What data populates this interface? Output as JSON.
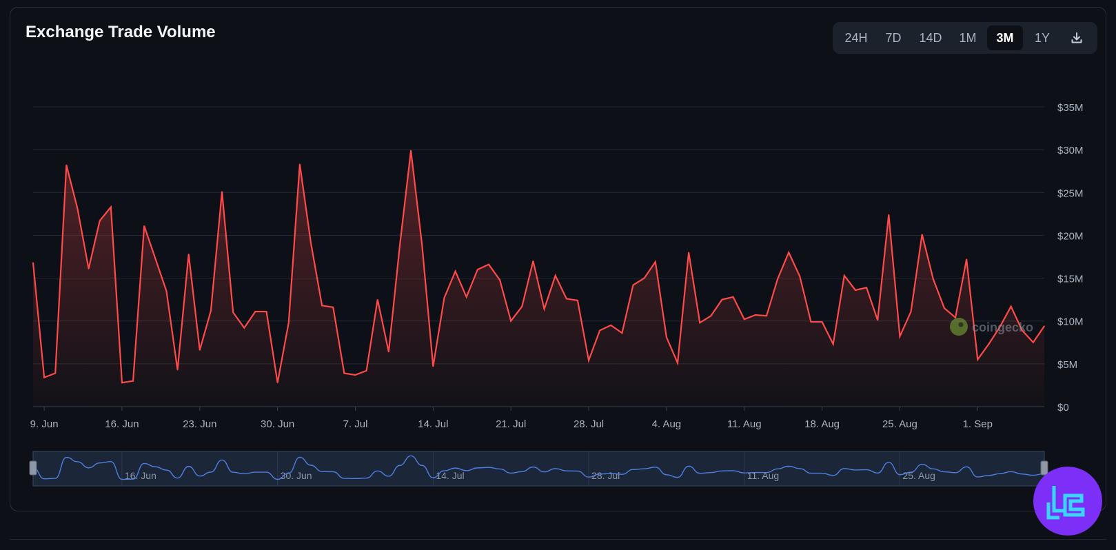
{
  "chart_title": "Exchange Trade Volume",
  "range_buttons": [
    "24H",
    "7D",
    "14D",
    "1M",
    "3M",
    "1Y"
  ],
  "active_range": "3M",
  "download_icon": "download-icon",
  "watermark": "coingecko",
  "brand_icon": "brand-logo-icon",
  "colors": {
    "line": "#ff4a4a",
    "area_top": "#ff4a4a",
    "grid": "#222a33",
    "navigator_line": "#4f7fe0",
    "navigator_fill": "#1b2638",
    "background": "#0d1117",
    "badge": "#7b2ff7"
  },
  "chart_data": {
    "type": "area",
    "title": "Exchange Trade Volume",
    "xlabel": "",
    "ylabel": "",
    "x_start": "2025-06-08",
    "x_end": "2025-09-07",
    "ylim": [
      0,
      35000000
    ],
    "grid": true,
    "y_ticks": [
      {
        "value": 0,
        "label": "$0"
      },
      {
        "value": 5000000,
        "label": "$5M"
      },
      {
        "value": 10000000,
        "label": "$10M"
      },
      {
        "value": 15000000,
        "label": "$15M"
      },
      {
        "value": 20000000,
        "label": "$20M"
      },
      {
        "value": 25000000,
        "label": "$25M"
      },
      {
        "value": 30000000,
        "label": "$30M"
      },
      {
        "value": 35000000,
        "label": "$35M"
      }
    ],
    "x_ticks": [
      {
        "date": "2025-06-09",
        "label": "9. Jun"
      },
      {
        "date": "2025-06-16",
        "label": "16. Jun"
      },
      {
        "date": "2025-06-23",
        "label": "23. Jun"
      },
      {
        "date": "2025-06-30",
        "label": "30. Jun"
      },
      {
        "date": "2025-07-07",
        "label": "7. Jul"
      },
      {
        "date": "2025-07-14",
        "label": "14. Jul"
      },
      {
        "date": "2025-07-21",
        "label": "21. Jul"
      },
      {
        "date": "2025-07-28",
        "label": "28. Jul"
      },
      {
        "date": "2025-08-04",
        "label": "4. Aug"
      },
      {
        "date": "2025-08-11",
        "label": "11. Aug"
      },
      {
        "date": "2025-08-18",
        "label": "18. Aug"
      },
      {
        "date": "2025-08-25",
        "label": "25. Aug"
      },
      {
        "date": "2025-09-01",
        "label": "1. Sep"
      }
    ],
    "navigator_ticks": [
      {
        "date": "2025-06-16",
        "label": "16. Jun"
      },
      {
        "date": "2025-06-30",
        "label": "30. Jun"
      },
      {
        "date": "2025-07-14",
        "label": "14. Jul"
      },
      {
        "date": "2025-07-28",
        "label": "28. Jul"
      },
      {
        "date": "2025-08-11",
        "label": "11. Aug"
      },
      {
        "date": "2025-08-25",
        "label": "25. Aug"
      }
    ],
    "series": [
      {
        "dates": [
          "2025-06-08",
          "2025-06-09",
          "2025-06-10",
          "2025-06-11",
          "2025-06-12",
          "2025-06-13",
          "2025-06-14",
          "2025-06-15",
          "2025-06-16",
          "2025-06-17",
          "2025-06-18",
          "2025-06-19",
          "2025-06-20",
          "2025-06-21",
          "2025-06-22",
          "2025-06-23",
          "2025-06-24",
          "2025-06-25",
          "2025-06-26",
          "2025-06-27",
          "2025-06-28",
          "2025-06-29",
          "2025-06-30",
          "2025-07-01",
          "2025-07-02",
          "2025-07-03",
          "2025-07-04",
          "2025-07-05",
          "2025-07-06",
          "2025-07-07",
          "2025-07-08",
          "2025-07-09",
          "2025-07-10",
          "2025-07-11",
          "2025-07-12",
          "2025-07-13",
          "2025-07-14",
          "2025-07-15",
          "2025-07-16",
          "2025-07-17",
          "2025-07-18",
          "2025-07-19",
          "2025-07-20",
          "2025-07-21",
          "2025-07-22",
          "2025-07-23",
          "2025-07-24",
          "2025-07-25",
          "2025-07-26",
          "2025-07-27",
          "2025-07-28",
          "2025-07-29",
          "2025-07-30",
          "2025-07-31",
          "2025-08-01",
          "2025-08-02",
          "2025-08-03",
          "2025-08-04",
          "2025-08-05",
          "2025-08-06",
          "2025-08-07",
          "2025-08-08",
          "2025-08-09",
          "2025-08-10",
          "2025-08-11",
          "2025-08-12",
          "2025-08-13",
          "2025-08-14",
          "2025-08-15",
          "2025-08-16",
          "2025-08-17",
          "2025-08-18",
          "2025-08-19",
          "2025-08-20",
          "2025-08-21",
          "2025-08-22",
          "2025-08-23",
          "2025-08-24",
          "2025-08-25",
          "2025-08-26",
          "2025-08-27",
          "2025-08-28",
          "2025-08-29",
          "2025-08-30",
          "2025-08-31",
          "2025-09-01",
          "2025-09-02",
          "2025-09-03",
          "2025-09-04",
          "2025-09-05",
          "2025-09-06",
          "2025-09-07"
        ],
        "values": [
          16800000,
          3400000,
          3900000,
          28200000,
          23100000,
          16100000,
          21700000,
          23300000,
          2800000,
          3000000,
          21100000,
          17300000,
          13500000,
          4300000,
          17800000,
          6600000,
          11200000,
          25100000,
          11000000,
          9200000,
          11100000,
          11100000,
          2800000,
          9800000,
          28300000,
          19100000,
          11800000,
          11600000,
          3900000,
          3700000,
          4200000,
          12500000,
          6400000,
          18800000,
          29900000,
          18900000,
          4700000,
          12700000,
          15800000,
          12800000,
          16000000,
          16600000,
          14800000,
          10000000,
          11700000,
          17000000,
          11400000,
          15300000,
          12600000,
          12400000,
          5400000,
          8900000,
          9500000,
          8600000,
          14200000,
          15000000,
          16900000,
          8100000,
          5100000,
          18000000,
          9800000,
          10600000,
          12500000,
          12800000,
          10200000,
          10700000,
          10600000,
          14900000,
          18000000,
          15200000,
          9900000,
          9900000,
          7300000,
          15300000,
          13600000,
          13900000,
          10100000,
          22400000,
          8200000,
          11100000,
          20100000,
          14900000,
          11500000,
          10400000,
          17200000,
          5500000,
          7300000,
          9300000,
          11700000,
          8900000,
          7500000,
          9400000
        ]
      }
    ]
  }
}
